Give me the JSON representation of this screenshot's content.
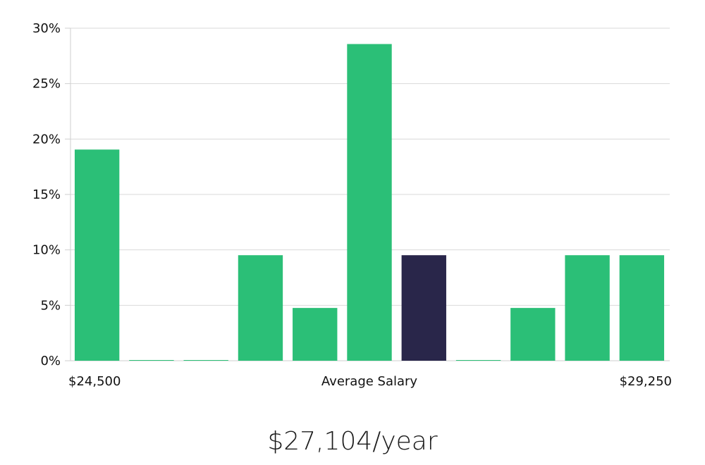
{
  "chart_data": {
    "type": "bar",
    "title": "",
    "xlabel": "Average Salary",
    "ylabel": "",
    "x_range_labels": {
      "min": "$24,500",
      "max": "$29,250"
    },
    "values": [
      19.05,
      0,
      0,
      9.52,
      4.76,
      28.57,
      9.52,
      0,
      4.76,
      9.52,
      9.52
    ],
    "highlight_index": 6,
    "ylim": [
      0,
      30
    ],
    "yticks": [
      0,
      5,
      10,
      15,
      20,
      25,
      30
    ],
    "ytick_labels": [
      "0%",
      "5%",
      "10%",
      "15%",
      "20%",
      "25%",
      "30%"
    ],
    "grid": true,
    "colors": {
      "bar": "#2bbf77",
      "highlight": "#29264a",
      "grid": "#d9d9d9"
    }
  },
  "summary": {
    "salary_text": "$27,104/year"
  }
}
